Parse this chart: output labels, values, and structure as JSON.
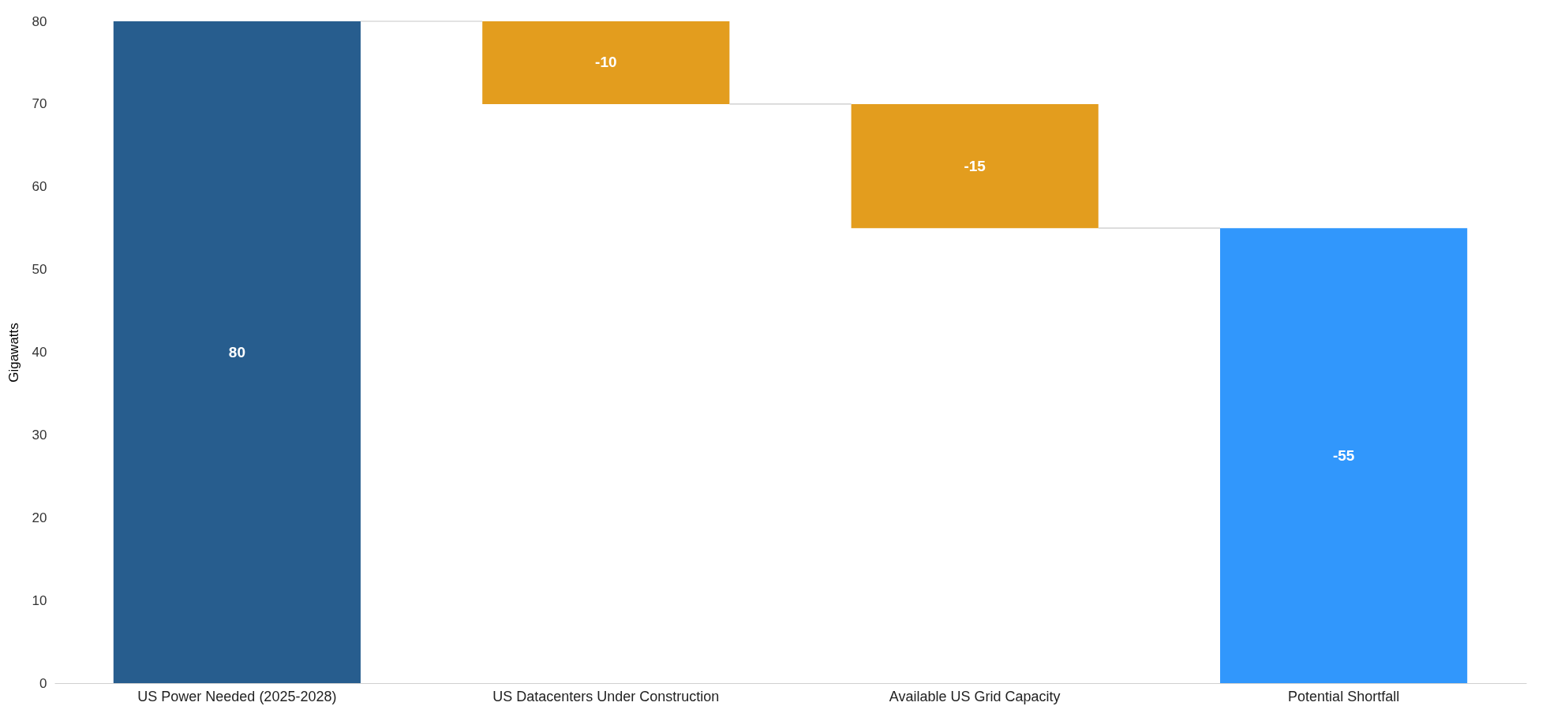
{
  "chart_data": {
    "type": "bar",
    "ylabel": "Gigawatts",
    "categories": [
      "US Power Needed (2025-2028)",
      "US Datacenters Under Construction",
      "Available US Grid Capacity",
      "Potential Shortfall"
    ],
    "values": [
      80,
      -10,
      -15,
      -55
    ],
    "base": [
      0,
      80,
      70,
      55
    ],
    "colors": [
      "#275d8e",
      "#e39d1e",
      "#e39d1e",
      "#3197fc"
    ],
    "ylim": [
      0,
      80
    ],
    "yticks": [
      0,
      10,
      20,
      30,
      40,
      50,
      60,
      70,
      80
    ],
    "grid": false,
    "data_labels": true
  }
}
